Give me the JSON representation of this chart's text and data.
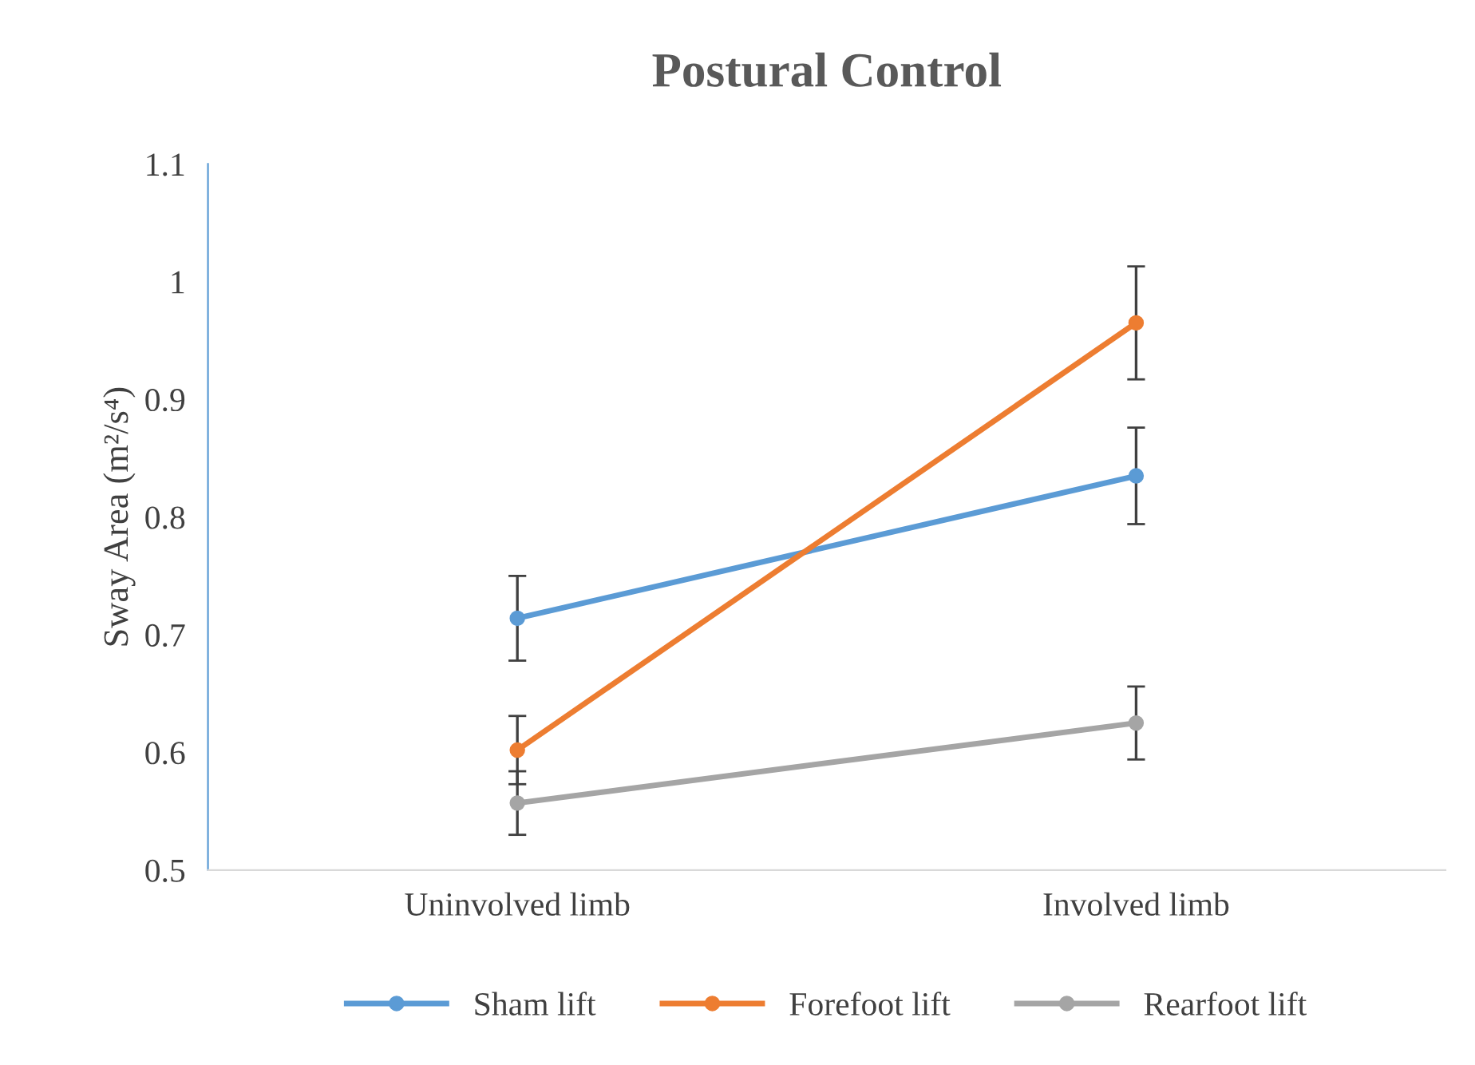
{
  "chart_data": {
    "type": "line",
    "title": "Postural Control",
    "ylabel": "Sway Area (m²/s⁴)",
    "categories": [
      "Uninvolved limb",
      "Involved limb"
    ],
    "series": [
      {
        "name": "Sham lift",
        "color": "#5b9bd5",
        "values": [
          0.714,
          0.835
        ],
        "errors": [
          0.036,
          0.041
        ]
      },
      {
        "name": "Forefoot lift",
        "color": "#ed7d31",
        "values": [
          0.602,
          0.965
        ],
        "errors": [
          0.029,
          0.048
        ]
      },
      {
        "name": "Rearfoot lift",
        "color": "#a5a5a5",
        "values": [
          0.557,
          0.625
        ],
        "errors": [
          0.027,
          0.031
        ]
      }
    ],
    "ylim": [
      0.5,
      1.1
    ],
    "yticks": [
      0.5,
      0.6,
      0.7,
      0.8,
      0.9,
      1,
      1.1
    ],
    "grid": false,
    "legend": "bottom",
    "marker": "circle",
    "line_style": "solid"
  }
}
